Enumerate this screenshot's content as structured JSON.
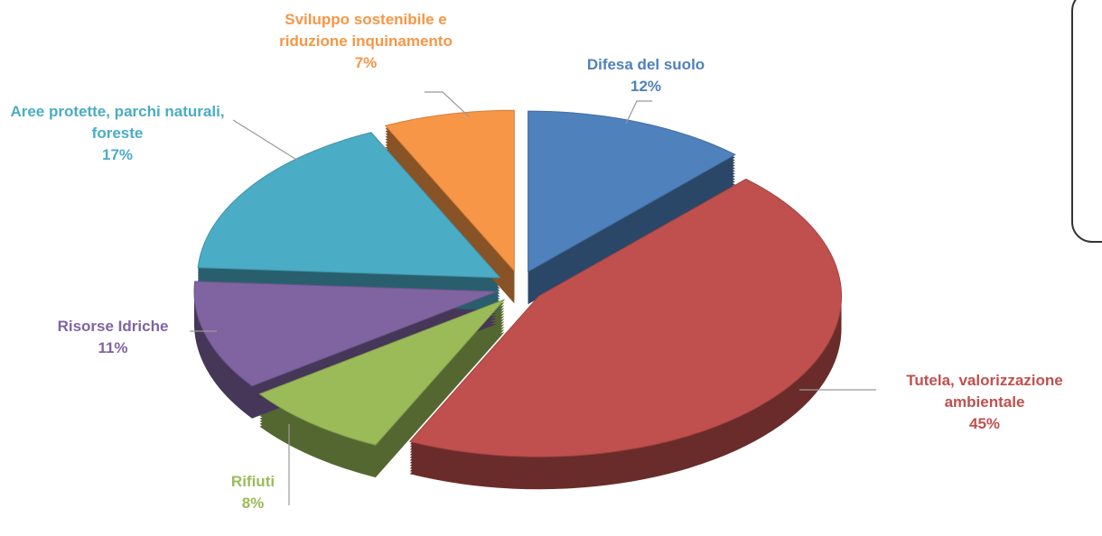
{
  "chart_data": {
    "type": "pie",
    "categories": [
      "Difesa del suolo",
      "Tutela, valorizzazione ambientale",
      "Rifiuti",
      "Risorse Idriche",
      "Aree protette, parchi naturali, foreste",
      "Sviluppo sostenibile e riduzione inquinamento"
    ],
    "values": [
      12,
      45,
      8,
      11,
      17,
      7
    ],
    "value_labels": [
      "12%",
      "45%",
      "8%",
      "11%",
      "17%",
      "7%"
    ],
    "colors": [
      "#4f81bd",
      "#c0504d",
      "#9bbb59",
      "#8064a2",
      "#4bacc6",
      "#f79646"
    ]
  }
}
